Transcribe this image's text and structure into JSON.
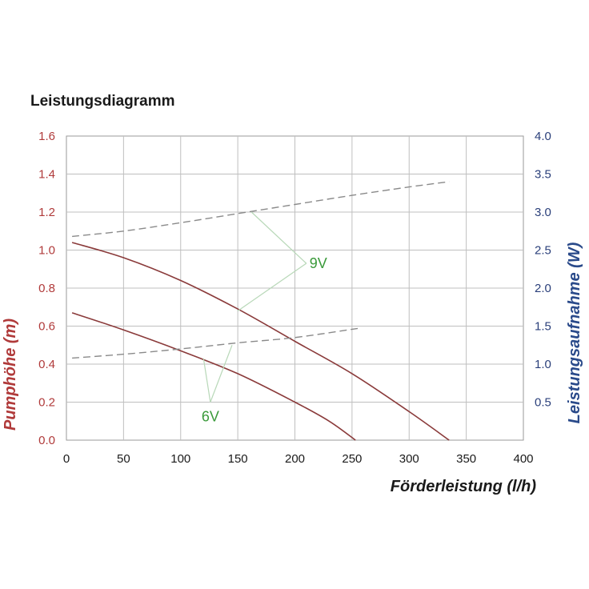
{
  "chart_data": {
    "type": "line",
    "title": "Leistungsdiagramm",
    "xlabel": "Förderleistung (l/h)",
    "ylabel": "Pumphöhe (m)",
    "y2label": "Leistungsaufnahme (W)",
    "xlim": [
      0,
      400
    ],
    "ylim": [
      0,
      1.6
    ],
    "y2lim": [
      0,
      4.0
    ],
    "xticks": [
      0,
      50,
      100,
      150,
      200,
      250,
      300,
      350,
      400
    ],
    "yticks": [
      0.0,
      0.2,
      0.4,
      0.6,
      0.8,
      1.0,
      1.2,
      1.4,
      1.6
    ],
    "y2ticks": [
      0.5,
      1.0,
      1.5,
      2.0,
      2.5,
      3.0,
      3.5,
      4.0
    ],
    "grid": true,
    "series": [
      {
        "key": "head_9v",
        "axis": "left",
        "style": "solid",
        "color": "#8a3a3a",
        "points": [
          [
            5,
            1.04
          ],
          [
            50,
            0.96
          ],
          [
            100,
            0.84
          ],
          [
            150,
            0.69
          ],
          [
            200,
            0.52
          ],
          [
            250,
            0.35
          ],
          [
            300,
            0.15
          ],
          [
            335,
            0.0
          ]
        ]
      },
      {
        "key": "head_6v",
        "axis": "left",
        "style": "solid",
        "color": "#8a3a3a",
        "points": [
          [
            5,
            0.67
          ],
          [
            50,
            0.58
          ],
          [
            100,
            0.47
          ],
          [
            150,
            0.35
          ],
          [
            200,
            0.2
          ],
          [
            230,
            0.1
          ],
          [
            253,
            0.0
          ]
        ]
      },
      {
        "key": "power_9v",
        "axis": "right",
        "style": "dashed",
        "color": "#8a8a8a",
        "points": [
          [
            5,
            2.68
          ],
          [
            50,
            2.75
          ],
          [
            100,
            2.86
          ],
          [
            150,
            2.98
          ],
          [
            200,
            3.1
          ],
          [
            250,
            3.22
          ],
          [
            300,
            3.33
          ],
          [
            335,
            3.4
          ]
        ]
      },
      {
        "key": "power_6v",
        "axis": "right",
        "style": "dashed",
        "color": "#8a8a8a",
        "points": [
          [
            5,
            1.08
          ],
          [
            50,
            1.13
          ],
          [
            100,
            1.2
          ],
          [
            150,
            1.28
          ],
          [
            200,
            1.35
          ],
          [
            255,
            1.47
          ]
        ]
      }
    ],
    "annotations": [
      {
        "text": "9V",
        "color": "#3a9a3a",
        "anchor": [
          210,
          0.93
        ],
        "targets": [
          [
            162,
            1.2
          ],
          [
            150,
            0.68
          ]
        ]
      },
      {
        "text": "6V",
        "color": "#3a9a3a",
        "anchor": [
          126,
          0.2
        ],
        "targets": [
          [
            120,
            0.43
          ],
          [
            145,
            0.5
          ]
        ]
      }
    ]
  }
}
